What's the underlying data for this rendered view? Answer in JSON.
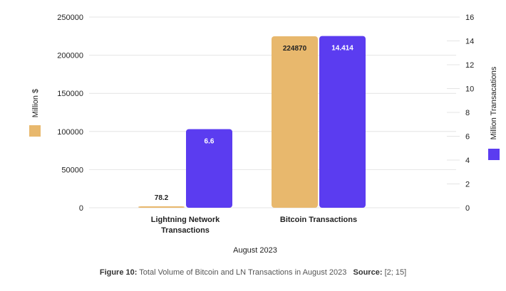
{
  "chart_data": {
    "type": "bar",
    "categories": [
      [
        "Lightning Network",
        "Transactions"
      ],
      [
        "Bitcoin Transactions"
      ]
    ],
    "xlabel": "August 2023",
    "series": [
      {
        "axis": "left",
        "color": "#e8b86d",
        "values": [
          78.2,
          224870
        ],
        "labels": [
          "78.2",
          "224870"
        ]
      },
      {
        "axis": "right",
        "color": "#5b3cf0",
        "values": [
          6.6,
          14.414
        ],
        "labels": [
          "6.6",
          "14.414"
        ]
      }
    ],
    "yaxis_left": {
      "label": "Million $",
      "ylim": [
        0,
        250000
      ],
      "ticks": [
        "0",
        "50000",
        "100000",
        "150000",
        "200000",
        "250000"
      ]
    },
    "yaxis_right": {
      "label": "Million Transacations",
      "ylim": [
        0,
        16
      ],
      "ticks": [
        "0",
        "2",
        "4",
        "6",
        "8",
        "10",
        "12",
        "14",
        "16"
      ]
    },
    "grid": true
  },
  "caption": {
    "figure_label": "Figure 10:",
    "text": "Total Volume of Bitcoin and LN Transactions in August 2023",
    "source_label": "Source:",
    "source_text": "[2; 15]"
  }
}
